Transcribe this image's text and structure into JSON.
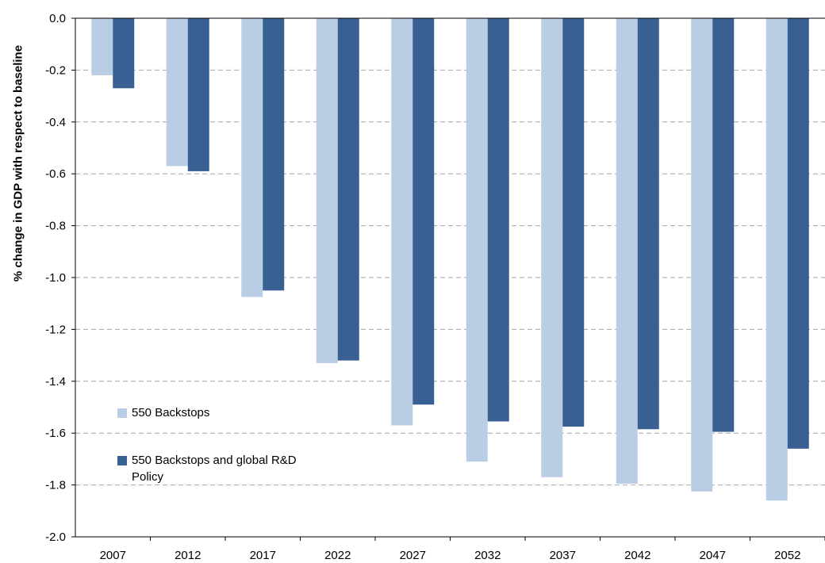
{
  "chart_data": {
    "type": "bar",
    "ylabel": "% change in GDP with respect to baseline",
    "xlabel": "",
    "categories": [
      "2007",
      "2012",
      "2017",
      "2022",
      "2027",
      "2032",
      "2037",
      "2042",
      "2047",
      "2052"
    ],
    "ylim": [
      -2.0,
      0.0
    ],
    "yticks": [
      0.0,
      -0.2,
      -0.4,
      -0.6,
      -0.8,
      -1.0,
      -1.2,
      -1.4,
      -1.6,
      -1.8,
      -2.0
    ],
    "ytick_labels": [
      "0.0",
      "-0.2",
      "-0.4",
      "-0.6",
      "-0.8",
      "-1.0",
      "-1.2",
      "-1.4",
      "-1.6",
      "-1.8",
      "-2.0"
    ],
    "grid": "horizontal dashed",
    "legend_position": "bottom-left inside plot",
    "series": [
      {
        "name": "550 Backstops",
        "color": "#b9cde5",
        "values": [
          -0.22,
          -0.57,
          -1.075,
          -1.33,
          -1.57,
          -1.71,
          -1.77,
          -1.795,
          -1.825,
          -1.86
        ]
      },
      {
        "name": "550 Backstops and global R&D Policy",
        "color": "#386092",
        "values": [
          -0.27,
          -0.59,
          -1.05,
          -1.32,
          -1.49,
          -1.555,
          -1.575,
          -1.585,
          -1.595,
          -1.66
        ]
      }
    ]
  }
}
